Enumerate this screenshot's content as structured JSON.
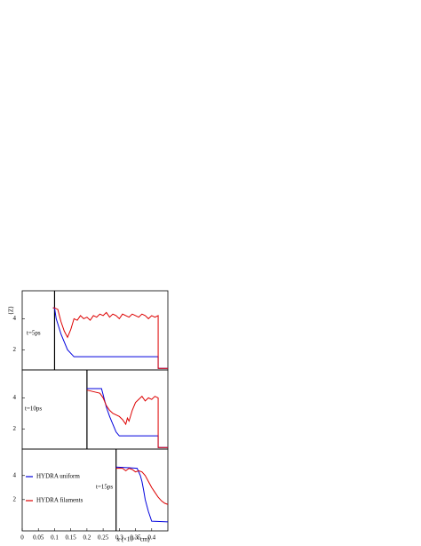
{
  "chart_data": [
    {
      "type": "line",
      "ylabel": "⟨Z⟩",
      "annotation": "t=5ps",
      "xlim": [
        0,
        0.45
      ],
      "ylim": [
        0.7,
        5.8
      ],
      "yticks": [
        2,
        4
      ],
      "vline_x": 0.1,
      "series": [
        {
          "name": "HYDRA uniform",
          "color": "#0000dd",
          "x": [
            0.095,
            0.1,
            0.105,
            0.12,
            0.14,
            0.16,
            0.2,
            0.3,
            0.42,
            0.42,
            0.45
          ],
          "values": [
            4.7,
            4.7,
            4.0,
            3.0,
            2.0,
            1.55,
            1.55,
            1.55,
            1.55,
            0.8,
            0.8
          ]
        },
        {
          "name": "HYDRA filaments",
          "color": "#dd0000",
          "x": [
            0.095,
            0.1,
            0.11,
            0.12,
            0.13,
            0.14,
            0.15,
            0.16,
            0.17,
            0.18,
            0.19,
            0.2,
            0.21,
            0.22,
            0.23,
            0.24,
            0.25,
            0.26,
            0.27,
            0.28,
            0.29,
            0.3,
            0.31,
            0.32,
            0.33,
            0.34,
            0.35,
            0.36,
            0.37,
            0.38,
            0.39,
            0.4,
            0.41,
            0.42,
            0.42,
            0.45
          ],
          "values": [
            4.7,
            4.7,
            4.6,
            3.8,
            3.2,
            2.8,
            3.3,
            4.0,
            3.9,
            4.2,
            4.0,
            4.1,
            3.9,
            4.2,
            4.1,
            4.3,
            4.2,
            4.4,
            4.1,
            4.3,
            4.2,
            4.0,
            4.3,
            4.2,
            4.1,
            4.3,
            4.2,
            4.1,
            4.3,
            4.2,
            4.0,
            4.2,
            4.1,
            4.2,
            0.8,
            0.8
          ]
        }
      ]
    },
    {
      "type": "line",
      "annotation": "t=10ps",
      "xlim": [
        0,
        0.45
      ],
      "ylim": [
        0.7,
        5.8
      ],
      "yticks": [
        2,
        4
      ],
      "vline_x": 0.2,
      "series": [
        {
          "name": "HYDRA uniform",
          "color": "#0000dd",
          "x": [
            0.2,
            0.245,
            0.25,
            0.26,
            0.27,
            0.29,
            0.3,
            0.35,
            0.42,
            0.42,
            0.45
          ],
          "values": [
            4.6,
            4.6,
            4.2,
            3.4,
            2.8,
            1.8,
            1.55,
            1.55,
            1.55,
            0.8,
            0.8
          ]
        },
        {
          "name": "HYDRA filaments",
          "color": "#dd0000",
          "x": [
            0.2,
            0.22,
            0.24,
            0.25,
            0.26,
            0.27,
            0.28,
            0.29,
            0.3,
            0.31,
            0.32,
            0.325,
            0.33,
            0.34,
            0.35,
            0.36,
            0.37,
            0.38,
            0.39,
            0.4,
            0.41,
            0.42,
            0.42,
            0.45
          ],
          "values": [
            4.5,
            4.4,
            4.3,
            4.0,
            3.5,
            3.2,
            3.0,
            2.9,
            2.8,
            2.6,
            2.3,
            2.7,
            2.5,
            3.2,
            3.7,
            3.9,
            4.1,
            3.8,
            4.0,
            3.9,
            4.1,
            4.0,
            0.8,
            0.8
          ]
        }
      ]
    },
    {
      "type": "line",
      "annotation": "t=15ps",
      "xlabel": "x (×10⁻⁴ cm)",
      "xlim": [
        0,
        0.45
      ],
      "ylim": [
        -0.6,
        6.2
      ],
      "yticks": [
        2,
        4
      ],
      "xticks": [
        0,
        0.05,
        0.1,
        0.15,
        0.2,
        0.25,
        0.3,
        0.35,
        0.4
      ],
      "vline_x": 0.29,
      "series": [
        {
          "name": "HYDRA uniform",
          "color": "#0000dd",
          "x": [
            0.29,
            0.33,
            0.355,
            0.365,
            0.37,
            0.375,
            0.38,
            0.39,
            0.395,
            0.4,
            0.45
          ],
          "values": [
            4.7,
            4.65,
            4.6,
            4.0,
            3.5,
            2.8,
            2.0,
            1.0,
            0.6,
            0.2,
            0.15
          ]
        },
        {
          "name": "HYDRA filaments",
          "color": "#dd0000",
          "x": [
            0.29,
            0.31,
            0.32,
            0.33,
            0.34,
            0.35,
            0.36,
            0.37,
            0.38,
            0.39,
            0.4,
            0.41,
            0.42,
            0.43,
            0.44,
            0.45
          ],
          "values": [
            4.6,
            4.6,
            4.4,
            4.6,
            4.5,
            4.3,
            4.4,
            4.3,
            4.0,
            3.5,
            3.0,
            2.6,
            2.2,
            1.9,
            1.7,
            1.6
          ]
        }
      ]
    }
  ]
}
